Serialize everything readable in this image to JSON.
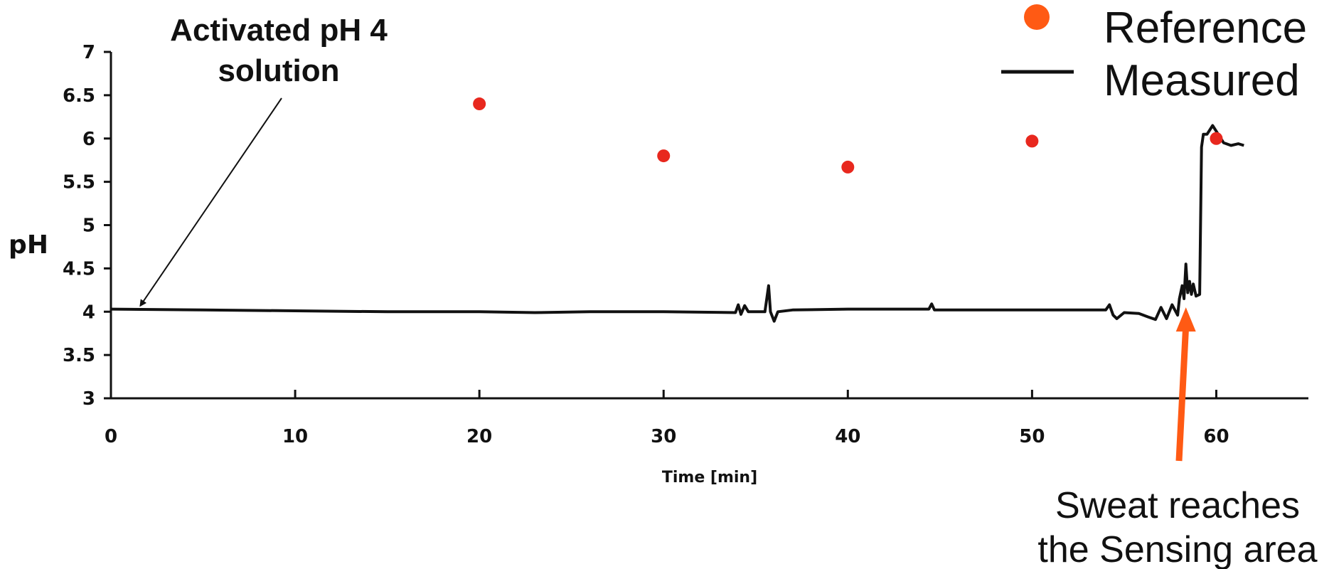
{
  "chart_data": {
    "type": "scatter",
    "title": "",
    "xlabel": "Time [min]",
    "ylabel": "pH",
    "xlim": [
      0,
      65
    ],
    "ylim": [
      3,
      7
    ],
    "x_ticks": [
      0,
      10,
      20,
      30,
      40,
      50,
      60
    ],
    "y_ticks": [
      3,
      3.5,
      4,
      4.5,
      5,
      5.5,
      6,
      6.5,
      7
    ],
    "y_tick_labels": [
      "3",
      "3.5",
      "4",
      "4.5",
      "5",
      "5.5",
      "6",
      "6.5",
      "7"
    ],
    "grid": false,
    "legend_position": "top-right",
    "series": [
      {
        "name": "Reference",
        "kind": "scatter",
        "color": "#e8281e",
        "legend_color": "#ff5a14",
        "points": [
          [
            20,
            6.4
          ],
          [
            30,
            5.8
          ],
          [
            40,
            5.67
          ],
          [
            50,
            5.97
          ],
          [
            60,
            6.0
          ]
        ]
      },
      {
        "name": "Measured",
        "kind": "line",
        "color": "#111111",
        "points": [
          [
            0,
            4.03
          ],
          [
            5,
            4.02
          ],
          [
            10,
            4.01
          ],
          [
            15,
            4.0
          ],
          [
            20,
            4.0
          ],
          [
            23,
            3.99
          ],
          [
            26,
            4.0
          ],
          [
            30,
            4.0
          ],
          [
            33.9,
            3.99
          ],
          [
            34.05,
            4.08
          ],
          [
            34.2,
            3.97
          ],
          [
            34.4,
            4.07
          ],
          [
            34.6,
            4.0
          ],
          [
            35.5,
            4.0
          ],
          [
            35.7,
            4.3
          ],
          [
            35.8,
            4.0
          ],
          [
            36.0,
            3.89
          ],
          [
            36.2,
            4.0
          ],
          [
            37,
            4.02
          ],
          [
            40,
            4.03
          ],
          [
            44.4,
            4.03
          ],
          [
            44.55,
            4.09
          ],
          [
            44.7,
            4.02
          ],
          [
            50,
            4.02
          ],
          [
            54,
            4.02
          ],
          [
            54.2,
            4.08
          ],
          [
            54.4,
            3.96
          ],
          [
            54.6,
            3.92
          ],
          [
            55,
            3.99
          ],
          [
            55.8,
            3.98
          ],
          [
            56.3,
            3.94
          ],
          [
            56.7,
            3.91
          ],
          [
            57,
            4.05
          ],
          [
            57.3,
            3.92
          ],
          [
            57.6,
            4.08
          ],
          [
            57.9,
            3.96
          ],
          [
            58.0,
            4.15
          ],
          [
            58.15,
            4.3
          ],
          [
            58.25,
            4.15
          ],
          [
            58.35,
            4.55
          ],
          [
            58.45,
            4.22
          ],
          [
            58.55,
            4.35
          ],
          [
            58.65,
            4.2
          ],
          [
            58.75,
            4.32
          ],
          [
            58.9,
            4.18
          ],
          [
            59.1,
            4.2
          ],
          [
            59.2,
            5.9
          ],
          [
            59.3,
            6.05
          ],
          [
            59.5,
            6.05
          ],
          [
            59.8,
            6.15
          ],
          [
            60.1,
            6.05
          ],
          [
            60.4,
            5.95
          ],
          [
            60.8,
            5.92
          ],
          [
            61.2,
            5.94
          ],
          [
            61.5,
            5.92
          ]
        ]
      }
    ],
    "annotations": [
      {
        "id": "activated",
        "lines": [
          "Activated pH 4",
          "solution"
        ],
        "points_to": [
          1.6,
          4.07
        ]
      },
      {
        "id": "sweat",
        "lines": [
          "Sweat reaches",
          "the Sensing area"
        ],
        "points_to": [
          58.35,
          4.05
        ],
        "arrow_color": "#ff5a14"
      }
    ]
  }
}
